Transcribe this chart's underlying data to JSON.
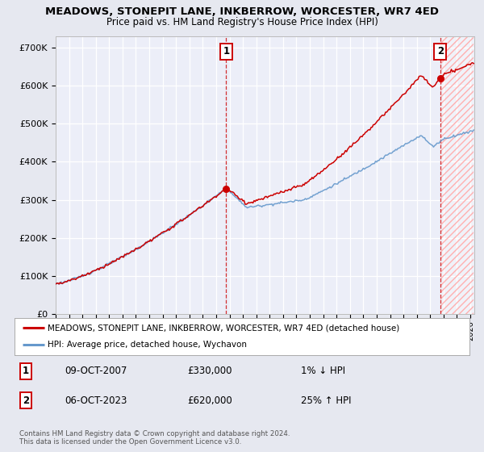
{
  "title": "MEADOWS, STONEPIT LANE, INKBERROW, WORCESTER, WR7 4ED",
  "subtitle": "Price paid vs. HM Land Registry's House Price Index (HPI)",
  "ylim": [
    0,
    730000
  ],
  "yticks": [
    0,
    100000,
    200000,
    300000,
    400000,
    500000,
    600000,
    700000
  ],
  "ytick_labels": [
    "£0",
    "£100K",
    "£200K",
    "£300K",
    "£400K",
    "£500K",
    "£600K",
    "£700K"
  ],
  "bg_color": "#e6e8f0",
  "plot_bg_color": "#eceef8",
  "grid_color": "#ffffff",
  "sale1_year": 2007.75,
  "sale1_price": 330000,
  "sale1_date_str": "09-OCT-2007",
  "sale1_pct": "1% ↓ HPI",
  "sale2_year": 2023.75,
  "sale2_price": 620000,
  "sale2_date_str": "06-OCT-2023",
  "sale2_pct": "25% ↑ HPI",
  "legend_line1": "MEADOWS, STONEPIT LANE, INKBERROW, WORCESTER, WR7 4ED (detached house)",
  "legend_line2": "HPI: Average price, detached house, Wychavon",
  "footer1": "Contains HM Land Registry data © Crown copyright and database right 2024.",
  "footer2": "This data is licensed under the Open Government Licence v3.0.",
  "hpi_color": "#6699cc",
  "prop_color": "#cc0000",
  "xlim_start": 1995,
  "xlim_end": 2026.3
}
